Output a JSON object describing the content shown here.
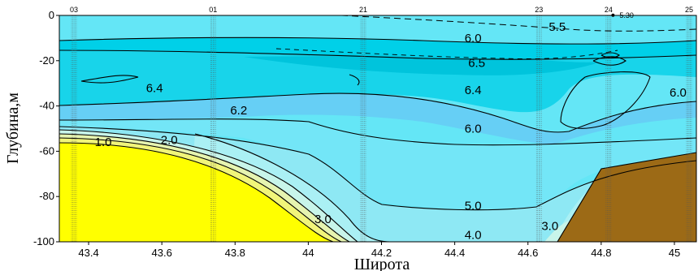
{
  "chart_data": {
    "type": "contour",
    "xlabel": "Широта",
    "ylabel": "Глубина,м",
    "xlim": [
      43.32,
      45.06
    ],
    "ylim": [
      -100,
      0
    ],
    "x_ticks": [
      {
        "value": 43.4,
        "label": "43.4"
      },
      {
        "value": 43.6,
        "label": "43.6"
      },
      {
        "value": 43.8,
        "label": "43.8"
      },
      {
        "value": 44.0,
        "label": "44"
      },
      {
        "value": 44.2,
        "label": "44.2"
      },
      {
        "value": 44.4,
        "label": "44.4"
      },
      {
        "value": 44.6,
        "label": "44.6"
      },
      {
        "value": 44.8,
        "label": "44.8"
      },
      {
        "value": 45.0,
        "label": "45"
      }
    ],
    "y_ticks": [
      {
        "value": 0,
        "label": "0"
      },
      {
        "value": -20,
        "label": "-20"
      },
      {
        "value": -40,
        "label": "-40"
      },
      {
        "value": -60,
        "label": "-60"
      },
      {
        "value": -80,
        "label": "-80"
      },
      {
        "value": -100,
        "label": "-100"
      }
    ],
    "stations": [
      {
        "label": "03",
        "x": 43.36
      },
      {
        "label": "01",
        "x": 43.74
      },
      {
        "label": "21",
        "x": 44.15
      },
      {
        "label": "23",
        "x": 44.63
      },
      {
        "label": "24",
        "x": 44.82
      },
      {
        "label": "25",
        "x": 45.04
      }
    ],
    "contour_labels": [
      {
        "label": "5.5",
        "x": 44.68,
        "y": -5
      },
      {
        "label": "6.0",
        "x": 44.45,
        "y": -10
      },
      {
        "label": "6.5",
        "x": 44.46,
        "y": -21
      },
      {
        "label": "6.4",
        "x": 43.58,
        "y": -32
      },
      {
        "label": "6.4",
        "x": 44.45,
        "y": -33
      },
      {
        "label": "6.2",
        "x": 43.81,
        "y": -42
      },
      {
        "label": "6.0",
        "x": 44.45,
        "y": -50
      },
      {
        "label": "6.0",
        "x": 45.01,
        "y": -34
      },
      {
        "label": "1.0",
        "x": 43.44,
        "y": -56
      },
      {
        "label": "2.0",
        "x": 43.62,
        "y": -55
      },
      {
        "label": "3.0",
        "x": 44.04,
        "y": -90
      },
      {
        "label": "5.0",
        "x": 44.45,
        "y": -84
      },
      {
        "label": "4.0",
        "x": 44.45,
        "y": -97
      },
      {
        "label": "3.0",
        "x": 44.66,
        "y": -93
      }
    ],
    "annotations": [
      {
        "label": "5.30",
        "x": 44.85,
        "y": -1
      }
    ],
    "colors": {
      "top": "#64e6f6",
      "band_60_65": "#00d0e8",
      "band_65": "#00c4dc",
      "band_64": "#18d4ea",
      "band_62": "#66cff5",
      "band_mid": "#73e6f7",
      "band_deep": "#8ee8f4",
      "band_4_5": "#aaf0f4",
      "band_3_4": "#c8f5ea",
      "band_2_3": "#e6f4b0",
      "band_1_2": "#f1f57a",
      "core": "#ffff00",
      "bottom": "#9c6a16",
      "station_line": "#555555"
    }
  }
}
